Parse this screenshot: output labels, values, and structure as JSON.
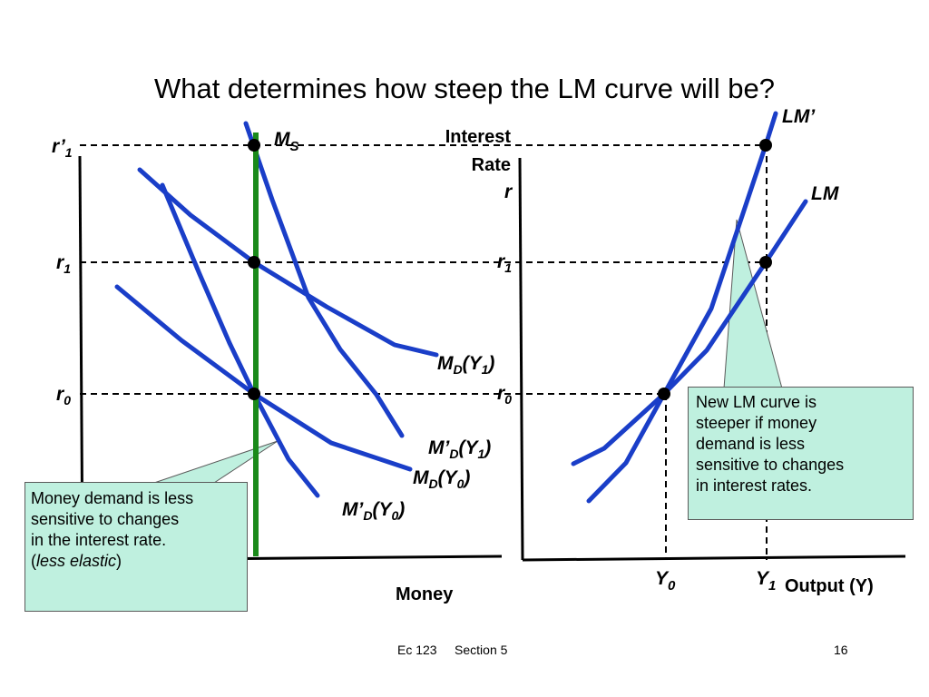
{
  "slide": {
    "title": "What determines how steep the LM curve will be?",
    "footer_left": "Ec 123     Section 5",
    "page_number": "16"
  },
  "colors": {
    "curve": "#1a3ec8",
    "supply_line": "#1a8a1a",
    "callout_fill": "#bff0df"
  },
  "left_graph": {
    "x_axis_label": "Money",
    "tick_r1_prime": "r’",
    "tick_r1_prime_sub": "1",
    "tick_r1": "r",
    "tick_r1_sub": "1",
    "tick_r0": "r",
    "tick_r0_sub": "0",
    "supply_label": "M",
    "supply_label_sub": "S",
    "curves": {
      "md_y1": {
        "pre": "M",
        "sub": "D",
        "mid": "(Y",
        "sub2": "1",
        "post": ")"
      },
      "mdp_y1": {
        "pre": "M’",
        "sub": "D",
        "mid": "(Y",
        "sub2": "1",
        "post": ")"
      },
      "md_y0": {
        "pre": "M",
        "sub": "D",
        "mid": "(Y",
        "sub2": "0",
        "post": ")"
      },
      "mdp_y0": {
        "pre": "M’",
        "sub": "D",
        "mid": "(Y",
        "sub2": "0",
        "post": ")"
      }
    },
    "callout": {
      "line1": "Money demand is less",
      "line2": "sensitive to changes",
      "line3": "in the interest rate.",
      "paren_open": "(",
      "italic": "less elastic",
      "paren_close": ")"
    }
  },
  "right_graph": {
    "y_axis_label_line1": "Interest",
    "y_axis_label_line2": "Rate",
    "y_axis_symbol": "r",
    "tick_r1": "r",
    "tick_r1_sub": "1",
    "tick_r0": "r",
    "tick_r0_sub": "0",
    "x_tick_y0": "Y",
    "x_tick_y0_sub": "0",
    "x_tick_y1": "Y",
    "x_tick_y1_sub": "1",
    "x_axis_label": "Output (Y)",
    "lm_prime_label": "LM’",
    "lm_label": "LM",
    "callout": {
      "line1": "New LM curve is",
      "line2": "steeper if money",
      "line3": "demand is less",
      "line4": "sensitive to changes",
      "line5": "in interest rates."
    }
  }
}
